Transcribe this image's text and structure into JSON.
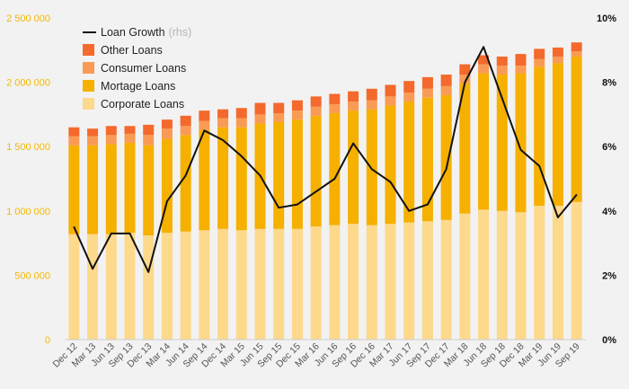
{
  "chart_data": {
    "type": "bar",
    "stacked": true,
    "legend_position": "top-left",
    "categories": [
      "Dec 12",
      "Mar 13",
      "Jun 13",
      "Sep 13",
      "Dec 13",
      "Mar 14",
      "Jun 14",
      "Sep 14",
      "Dec 14",
      "Mar 15",
      "Jun 15",
      "Sep 15",
      "Dec 15",
      "Mar 16",
      "Jun 16",
      "Sep 16",
      "Dec 16",
      "Mar 17",
      "Jun 17",
      "Sep 17",
      "Dec 17",
      "Mar 18",
      "Jun 18",
      "Sep 18",
      "Dec 18",
      "Mar 19",
      "Jun 19",
      "Sep 19"
    ],
    "x_tick_labels": [
      "Dec 12",
      "Mar 13",
      "Jun 13",
      "Sep 13",
      "Dec 13",
      "Mar 14",
      "Jun 14",
      "Sep 14",
      "Dec 14",
      "Mar 15",
      "Jun 15",
      "Sep 15",
      "Dec 15",
      "Mar 16",
      "Jun 16",
      "Sep 16",
      "Dec 16",
      "Mar 17",
      "Jun 17",
      "Sep 17",
      "Dec 17",
      "Mar 18",
      "Jun 18",
      "Sep 18",
      "Dec 18",
      "Mar 19",
      "Jun 19",
      "Sep 19"
    ],
    "label_every": 1,
    "series": [
      {
        "name": "Corporate Loans",
        "color": "#fdd98c",
        "values": [
          820000,
          820000,
          820000,
          830000,
          810000,
          830000,
          840000,
          850000,
          860000,
          850000,
          860000,
          860000,
          860000,
          880000,
          890000,
          900000,
          890000,
          900000,
          910000,
          920000,
          930000,
          980000,
          1010000,
          1000000,
          990000,
          1040000,
          1040000,
          1070000
        ]
      },
      {
        "name": "Mortage Loans",
        "color": "#f5b000",
        "values": [
          690000,
          690000,
          700000,
          700000,
          700000,
          730000,
          750000,
          780000,
          790000,
          800000,
          820000,
          830000,
          850000,
          860000,
          870000,
          880000,
          900000,
          920000,
          940000,
          960000,
          970000,
          1010000,
          1060000,
          1060000,
          1080000,
          1080000,
          1110000,
          1130000
        ]
      },
      {
        "name": "Consumer Loans",
        "color": "#f99b55",
        "values": [
          70000,
          70000,
          70000,
          70000,
          80000,
          80000,
          70000,
          70000,
          70000,
          70000,
          70000,
          70000,
          70000,
          70000,
          70000,
          70000,
          70000,
          70000,
          70000,
          70000,
          70000,
          70000,
          70000,
          70000,
          60000,
          60000,
          50000,
          40000
        ]
      },
      {
        "name": "Other Loans",
        "color": "#f4692c",
        "values": [
          70000,
          60000,
          70000,
          60000,
          80000,
          70000,
          80000,
          80000,
          70000,
          80000,
          90000,
          80000,
          80000,
          80000,
          80000,
          80000,
          90000,
          90000,
          90000,
          90000,
          90000,
          80000,
          70000,
          70000,
          90000,
          80000,
          70000,
          70000
        ]
      }
    ],
    "line_series": {
      "name": "Loan Growth",
      "axis": "rhs",
      "axis_label": "(rhs)",
      "color": "#111111",
      "values": [
        3.5,
        2.2,
        3.3,
        3.3,
        2.1,
        4.3,
        5.1,
        6.5,
        6.2,
        5.7,
        5.1,
        4.1,
        4.2,
        4.6,
        5.0,
        6.1,
        5.3,
        4.9,
        4.0,
        4.2,
        5.3,
        8.0,
        9.1,
        7.5,
        5.9,
        5.4,
        3.8,
        4.5
      ]
    },
    "y_left": {
      "min": 0,
      "max": 2500000,
      "ticks": [
        0,
        500000,
        1000000,
        1500000,
        2000000,
        2500000
      ],
      "tick_labels": [
        "0",
        "500 000",
        "1 000 000",
        "1 500 000",
        "2 000 000",
        "2 500 000"
      ],
      "color": "#f5b800"
    },
    "y_right": {
      "min": 0,
      "max": 10,
      "ticks": [
        0,
        2,
        4,
        6,
        8,
        10
      ],
      "tick_labels": [
        "0%",
        "2%",
        "4%",
        "6%",
        "8%",
        "10%"
      ],
      "color": "#111111"
    },
    "title": "",
    "xlabel": "",
    "ylabel": ""
  }
}
